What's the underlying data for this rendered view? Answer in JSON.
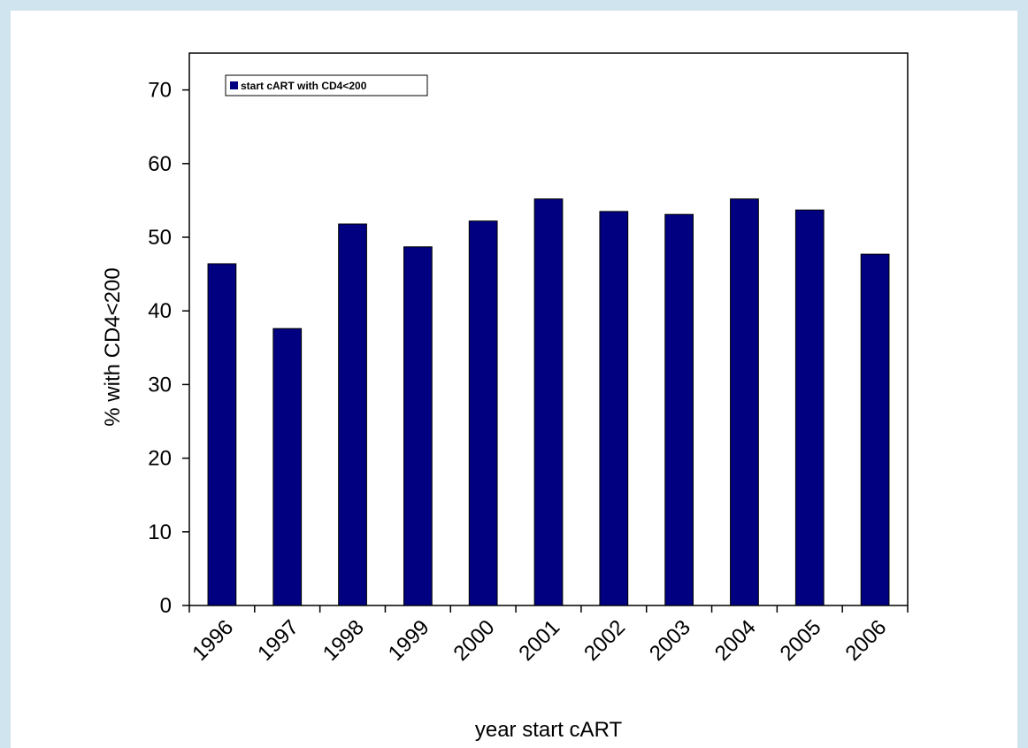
{
  "chart_data": {
    "type": "bar",
    "y_label": "% with CD4<200",
    "x_label": "year start cART",
    "categories": [
      "1996",
      "1997",
      "1998",
      "1999",
      "2000",
      "2001",
      "2002",
      "2003",
      "2004",
      "2005",
      "2006"
    ],
    "series": [
      {
        "name": "start cART with CD4<200",
        "color": "#000080",
        "values": [
          46.4,
          37.6,
          51.8,
          48.7,
          52.2,
          55.2,
          53.5,
          53.1,
          55.2,
          53.7,
          47.7
        ]
      }
    ],
    "ylim": [
      0,
      75
    ],
    "yticks": [
      0,
      10,
      20,
      30,
      40,
      50,
      60,
      70
    ],
    "grid": false,
    "legend": "top-left"
  }
}
